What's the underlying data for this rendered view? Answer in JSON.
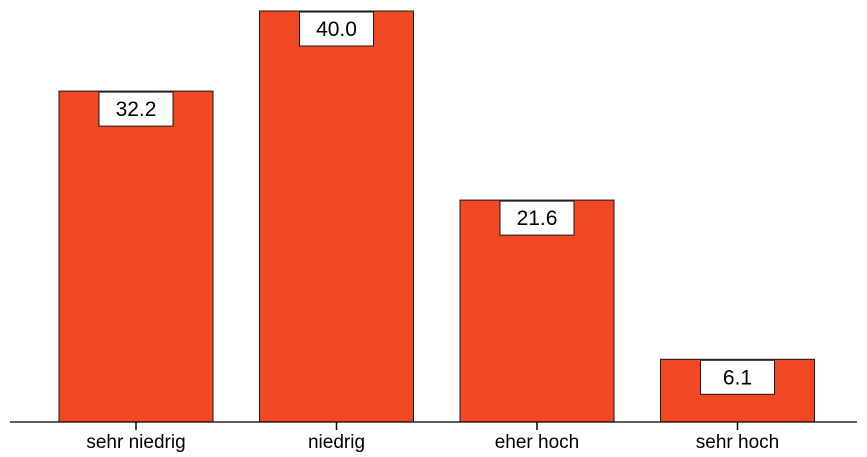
{
  "chart_data": {
    "type": "bar",
    "categories": [
      "sehr niedrig",
      "niedrig",
      "eher hoch",
      "sehr hoch"
    ],
    "values": [
      32.2,
      40.0,
      21.6,
      6.1
    ],
    "value_labels": [
      "32.2",
      "40.0",
      "21.6",
      "6.1"
    ],
    "ylim": [
      0,
      40
    ],
    "grid": false,
    "bar_color": "#ef4823"
  }
}
